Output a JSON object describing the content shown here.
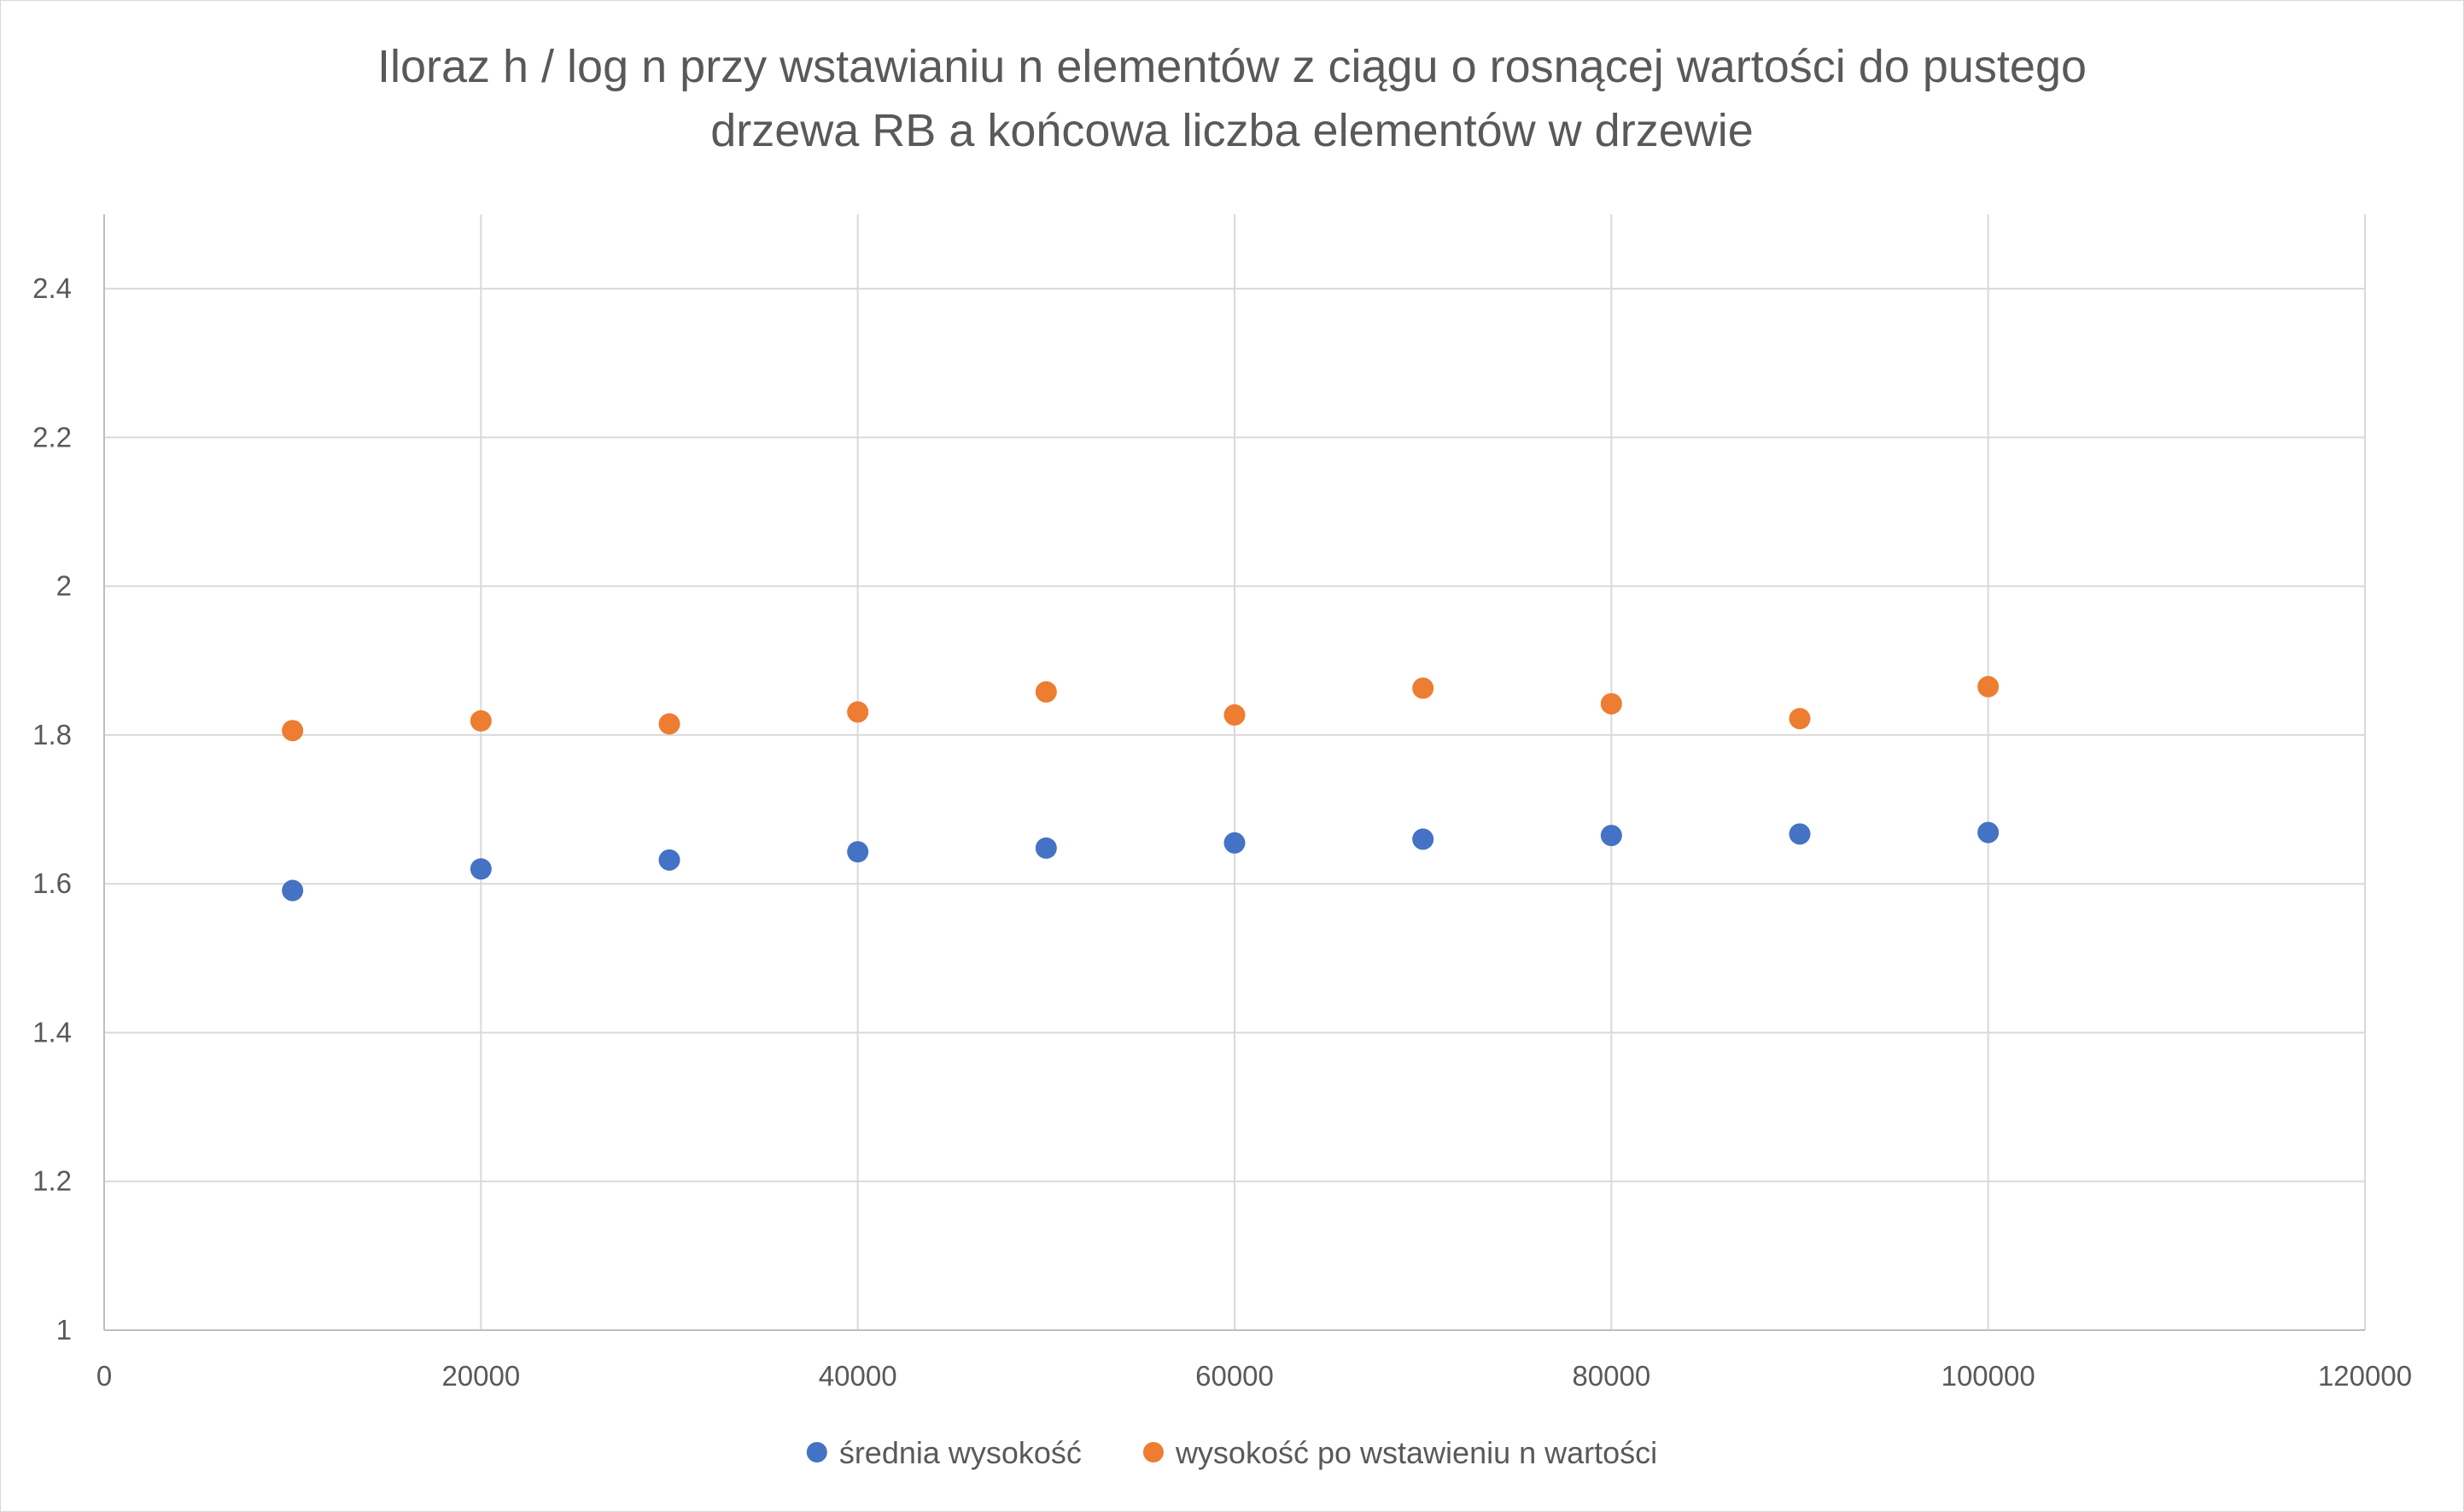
{
  "chart_data": {
    "type": "scatter",
    "title_lines": [
      "Iloraz h / log n przy wstawianiu n elementów z ciągu o rosnącej wartości do pustego",
      "drzewa RB a końcowa liczba elementów w drzewie"
    ],
    "xlabel": "",
    "ylabel": "",
    "xlim": [
      0,
      120000
    ],
    "ylim": [
      1,
      2.5
    ],
    "x_ticks": [
      0,
      20000,
      40000,
      60000,
      80000,
      100000,
      120000
    ],
    "x_tick_labels": [
      "0",
      "20000",
      "40000",
      "60000",
      "80000",
      "100000",
      "120000"
    ],
    "y_ticks": [
      1,
      1.2,
      1.4,
      1.6,
      1.8,
      2,
      2.2,
      2.4
    ],
    "y_tick_labels": [
      "1",
      "1.2",
      "1.4",
      "1.6",
      "1.8",
      "2",
      "2.2",
      "2.4"
    ],
    "grid": true,
    "legend_position": "bottom",
    "series": [
      {
        "name": "średnia wysokość",
        "color": "#4472c4",
        "x": [
          10000,
          20000,
          30000,
          40000,
          50000,
          60000,
          70000,
          80000,
          90000,
          100000
        ],
        "y": [
          1.591,
          1.62,
          1.632,
          1.643,
          1.648,
          1.655,
          1.66,
          1.665,
          1.667,
          1.669
        ]
      },
      {
        "name": "wysokość po wstawieniu n wartości",
        "color": "#ed7d31",
        "x": [
          10000,
          20000,
          30000,
          40000,
          50000,
          60000,
          70000,
          80000,
          90000,
          100000
        ],
        "y": [
          1.806,
          1.819,
          1.815,
          1.831,
          1.858,
          1.827,
          1.863,
          1.842,
          1.822,
          1.865
        ]
      }
    ]
  }
}
